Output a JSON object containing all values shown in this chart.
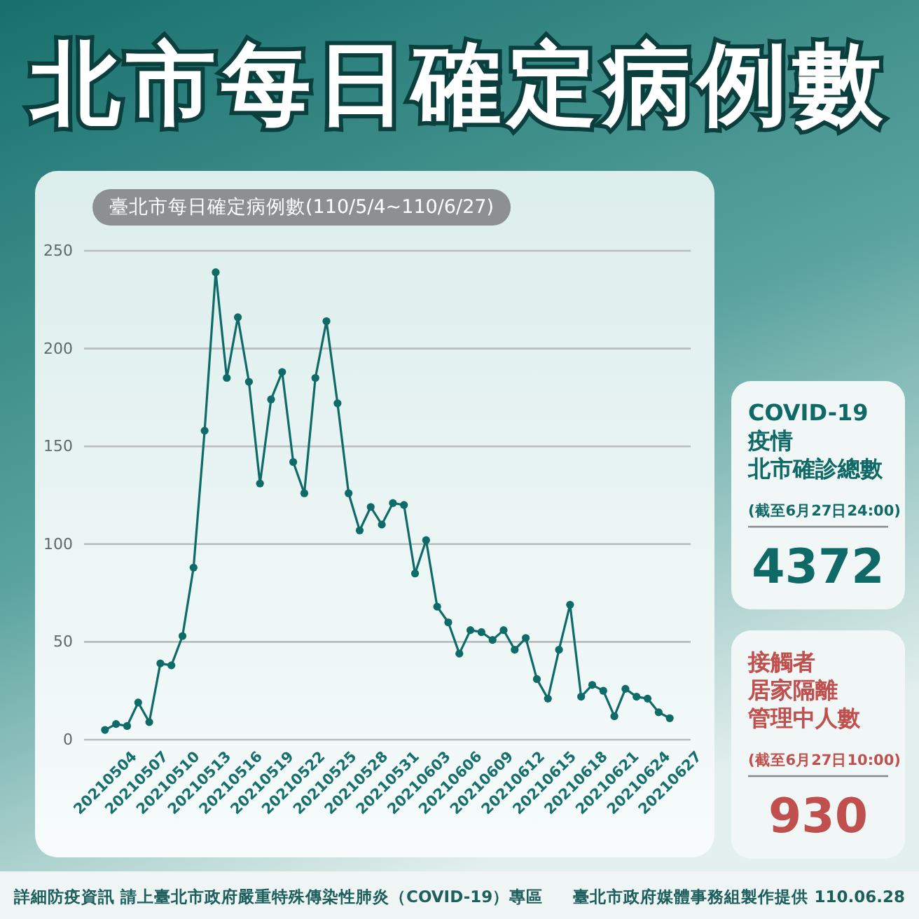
{
  "chart_data": {
    "type": "line",
    "title": "北市每日確定病例數",
    "subtitle": "臺北市每日確定病例數(110/5/4~110/6/27)",
    "x": [
      "2021-05-04T00:00",
      "2021-05-05T01:25",
      "2021-05-06T02:49",
      "2021-05-07T04:14",
      "2021-05-08T05:39",
      "2021-05-09T07:04",
      "2021-05-10T08:28",
      "2021-05-11T09:53",
      "2021-05-12T11:18",
      "2021-05-13T12:42",
      "2021-05-14T14:07",
      "2021-05-15T15:32",
      "2021-05-16T16:56",
      "2021-05-17T18:21",
      "2021-05-18T19:46",
      "2021-05-19T21:11",
      "2021-05-20T22:35",
      "2021-05-22T00:00",
      "2021-05-23T01:25",
      "2021-05-24T02:49",
      "2021-05-25T04:14",
      "2021-05-26T05:39",
      "2021-05-27T07:04",
      "2021-05-28T08:28",
      "2021-05-29T09:53",
      "2021-05-30T11:18",
      "2021-05-31T12:42",
      "2021-06-01T14:07",
      "2021-06-02T15:32",
      "2021-06-03T16:56",
      "2021-06-04T18:21",
      "2021-06-05T19:46",
      "2021-06-06T21:11",
      "2021-06-07T22:35",
      "2021-06-09T00:00",
      "2021-06-10T01:25",
      "2021-06-11T02:49",
      "2021-06-12T04:14",
      "2021-06-13T05:39",
      "2021-06-14T07:04",
      "2021-06-15T08:28",
      "2021-06-16T09:53",
      "2021-06-17T11:18",
      "2021-06-18T12:42",
      "2021-06-19T14:07",
      "2021-06-20T15:32",
      "2021-06-21T16:56",
      "2021-06-22T18:21",
      "2021-06-23T19:46",
      "2021-06-24T21:11",
      "2021-06-25T22:35",
      "2021-06-27T00:00"
    ],
    "series": [
      {
        "color": "#0e6b68",
        "values": [
          5,
          8,
          7,
          19,
          9,
          39,
          38,
          53,
          88,
          158,
          239,
          185,
          216,
          183,
          131,
          174,
          188,
          142,
          126,
          185,
          214,
          172,
          126,
          107,
          119,
          110,
          121,
          120,
          85,
          102,
          68,
          60,
          44,
          56,
          55,
          51,
          56,
          46,
          52,
          31,
          21,
          46,
          69,
          22,
          28,
          25,
          12,
          26,
          22,
          21,
          14,
          11
        ]
      }
    ],
    "xlim": [
      "2021-05-02",
      "2021-06-29"
    ],
    "xticks": [
      {
        "value": "2021-05-04",
        "label": "20210504"
      },
      {
        "value": "2021-05-07",
        "label": "20210507"
      },
      {
        "value": "2021-05-10",
        "label": "20210510"
      },
      {
        "value": "2021-05-13",
        "label": "20210513"
      },
      {
        "value": "2021-05-16",
        "label": "20210516"
      },
      {
        "value": "2021-05-19",
        "label": "20210519"
      },
      {
        "value": "2021-05-22",
        "label": "20210522"
      },
      {
        "value": "2021-05-25",
        "label": "20210525"
      },
      {
        "value": "2021-05-28",
        "label": "20210528"
      },
      {
        "value": "2021-05-31",
        "label": "20210531"
      },
      {
        "value": "2021-06-03",
        "label": "20210603"
      },
      {
        "value": "2021-06-06",
        "label": "20210606"
      },
      {
        "value": "2021-06-09",
        "label": "20210609"
      },
      {
        "value": "2021-06-12",
        "label": "20210612"
      },
      {
        "value": "2021-06-15",
        "label": "20210615"
      },
      {
        "value": "2021-06-18",
        "label": "20210618"
      },
      {
        "value": "2021-06-21",
        "label": "20210621"
      },
      {
        "value": "2021-06-24",
        "label": "20210624"
      },
      {
        "value": "2021-06-27",
        "label": "20210627"
      }
    ],
    "ylim": [
      0,
      250
    ],
    "yticks": [
      0,
      50,
      100,
      150,
      200,
      250
    ],
    "grid": "y",
    "marker": "circle",
    "line_style": "solid",
    "annotations": [
      "COVID-19",
      "疫情",
      "北市確診總數",
      "(截至6月27日24:00)",
      "4372",
      "接觸者",
      "居家隔離",
      "管理中人數",
      "(截至6月27日10:00)",
      "930",
      "詳細防疫資訊 請上臺北市政府嚴重特殊傳染性肺炎（COVID-19）專區",
      "臺北市政府媒體事務組製作提供 110.06.28"
    ]
  }
}
